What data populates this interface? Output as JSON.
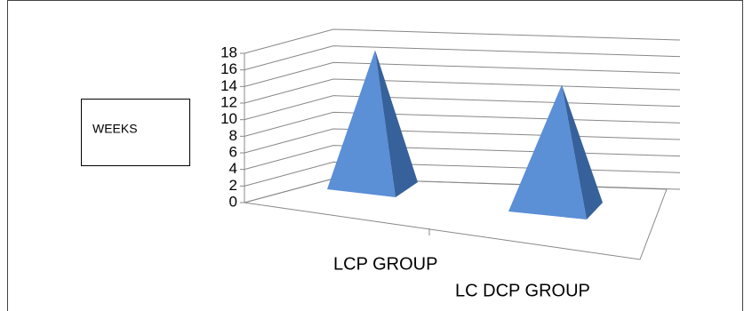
{
  "chart_data": {
    "type": "pyramid3d",
    "categories": [
      "LCP GROUP",
      "LC DCP GROUP"
    ],
    "values": [
      17,
      15.5
    ],
    "color": "#5b8fd6",
    "y_label": "WEEKS",
    "ylim": [
      0,
      18
    ],
    "yticks": [
      0,
      2,
      4,
      6,
      8,
      10,
      12,
      14,
      16,
      18
    ],
    "grid": true
  }
}
